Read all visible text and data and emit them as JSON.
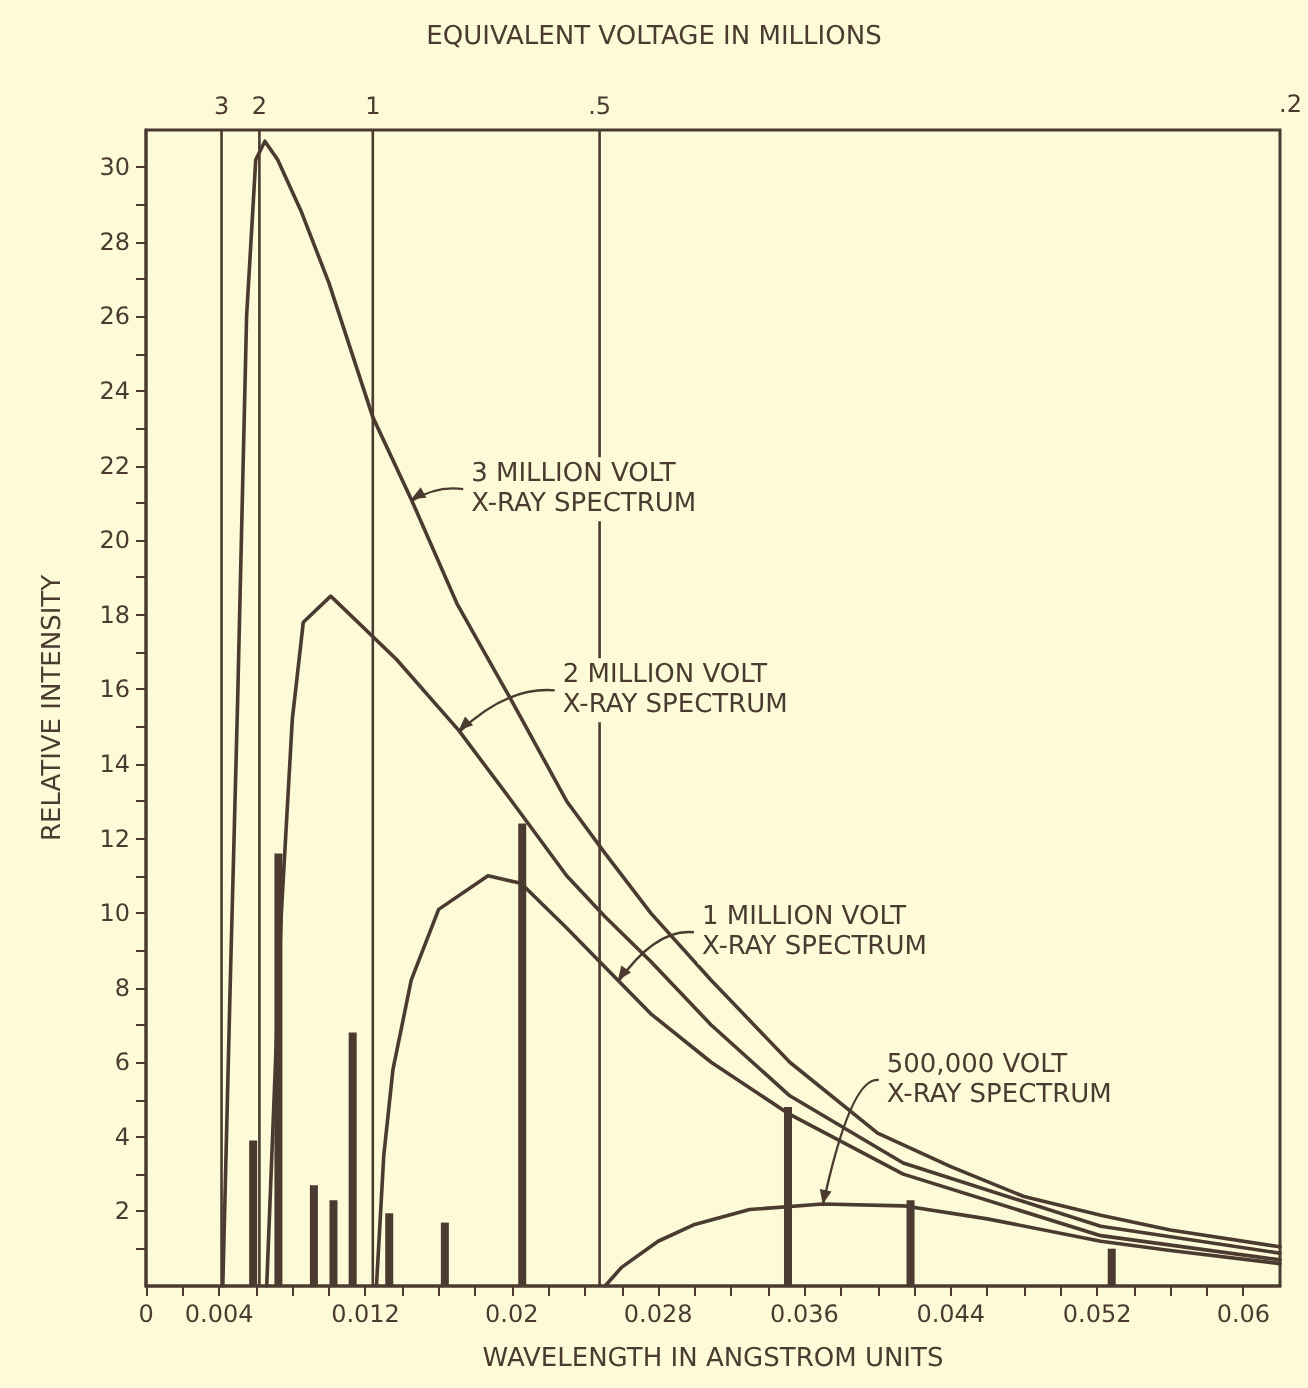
{
  "chart_data": {
    "type": "line",
    "xlabel": "WAVELENGTH IN ANGSTROM UNITS",
    "ylabel": "RELATIVE INTENSITY",
    "xlim": [
      0,
      0.062
    ],
    "xticks": [
      {
        "value": 0,
        "label": "0"
      },
      {
        "value": 0.002,
        "label": null
      },
      0.004,
      {
        "value": 0.006,
        "label": null
      },
      {
        "value": 0.008,
        "label": null
      },
      {
        "value": 0.01,
        "label": null
      },
      0.012,
      {
        "value": 0.014,
        "label": null
      },
      {
        "value": 0.016,
        "label": null
      },
      {
        "value": 0.018,
        "label": null
      },
      0.02,
      {
        "value": 0.022,
        "label": null
      },
      {
        "value": 0.024,
        "label": null
      },
      {
        "value": 0.026,
        "label": null
      },
      0.028,
      {
        "value": 0.03,
        "label": null
      },
      {
        "value": 0.032,
        "label": null
      },
      {
        "value": 0.034,
        "label": null
      },
      0.036,
      {
        "value": 0.038,
        "label": null
      },
      {
        "value": 0.04,
        "label": null
      },
      {
        "value": 0.042,
        "label": null
      },
      0.044,
      {
        "value": 0.046,
        "label": null
      },
      {
        "value": 0.048,
        "label": null
      },
      {
        "value": 0.05,
        "label": null
      },
      0.052,
      {
        "value": 0.054,
        "label": null
      },
      {
        "value": 0.056,
        "label": null
      },
      {
        "value": 0.058,
        "label": null
      },
      0.06
    ],
    "ylim": [
      0,
      31
    ],
    "yticks": [
      {
        "value": 1,
        "label": null
      },
      2,
      {
        "value": 3,
        "label": null
      },
      4,
      {
        "value": 5,
        "label": null
      },
      6,
      {
        "value": 7,
        "label": null
      },
      8,
      {
        "value": 9,
        "label": null
      },
      10,
      {
        "value": 11,
        "label": null
      },
      12,
      {
        "value": 13,
        "label": null
      },
      14,
      {
        "value": 15,
        "label": null
      },
      16,
      {
        "value": 17,
        "label": null
      },
      18,
      {
        "value": 19,
        "label": null
      },
      20,
      {
        "value": 21,
        "label": null
      },
      22,
      {
        "value": 23,
        "label": null
      },
      24,
      {
        "value": 25,
        "label": null
      },
      26,
      {
        "value": 27,
        "label": null
      },
      28,
      {
        "value": 29,
        "label": null
      },
      30
    ],
    "grid": false,
    "marker": "none",
    "line_style": "solid",
    "series": [
      {
        "color": "#4b3a30",
        "x": [
          0.0042,
          0.0046,
          0.005,
          0.0055,
          0.006,
          0.0065,
          0.0072,
          0.0085,
          0.01,
          0.0124,
          0.0145,
          0.017,
          0.0201,
          0.023,
          0.0251,
          0.0276,
          0.0309,
          0.0352,
          0.04,
          0.044,
          0.048,
          0.0522,
          0.056,
          0.062
        ],
        "values": [
          0,
          8,
          15.5,
          26,
          30.2,
          30.7,
          30.2,
          28.8,
          26.9,
          23.3,
          21.1,
          18.3,
          15.6,
          13,
          11.6,
          10,
          8.2,
          6,
          4.1,
          3.2,
          2.4,
          1.9,
          1.5,
          1.05
        ]
      },
      {
        "color": "#4b3a30",
        "x": [
          0.0066,
          0.007,
          0.0074,
          0.008,
          0.0086,
          0.0101,
          0.0137,
          0.0171,
          0.02,
          0.023,
          0.0251,
          0.0276,
          0.0309,
          0.0352,
          0.0414,
          0.0522,
          0.062
        ],
        "values": [
          0,
          5,
          10,
          15.2,
          17.8,
          18.5,
          16.8,
          14.9,
          13,
          11,
          9.9,
          8.7,
          7,
          5.1,
          3.3,
          1.6,
          0.88
        ]
      },
      {
        "color": "#4b3a30",
        "x": [
          0.0126,
          0.013,
          0.0135,
          0.0145,
          0.016,
          0.0187,
          0.0205,
          0.023,
          0.0258,
          0.0276,
          0.0309,
          0.0352,
          0.0414,
          0.0522,
          0.062
        ],
        "values": [
          0,
          3.5,
          5.8,
          8.2,
          10.1,
          11,
          10.8,
          9.6,
          8.2,
          7.3,
          6,
          4.6,
          3,
          1.35,
          0.7
        ]
      },
      {
        "color": "#4b3a30",
        "x": [
          0.0251,
          0.026,
          0.028,
          0.03,
          0.033,
          0.037,
          0.0414,
          0.046,
          0.0522,
          0.056,
          0.062
        ],
        "values": [
          0,
          0.5,
          1.2,
          1.65,
          2.05,
          2.2,
          2.15,
          1.8,
          1.2,
          0.95,
          0.6
        ]
      },
      {
        "type": "bar",
        "color": "#4b3a30",
        "x": [
          0.00586,
          0.00724,
          0.00918,
          0.01025,
          0.0113,
          0.0133,
          0.01634,
          0.02057,
          0.0351,
          0.0418,
          0.0528
        ],
        "values": [
          3.9,
          11.6,
          2.7,
          2.3,
          6.8,
          1.95,
          1.7,
          12.4,
          4.8,
          2.3,
          1
        ]
      }
    ],
    "ref_lines": [
      {
        "axis": "x",
        "value": 0.00413,
        "color": "#4b3a30"
      },
      {
        "axis": "x",
        "value": 0.0062,
        "color": "#4b3a30"
      },
      {
        "axis": "x",
        "value": 0.0124,
        "color": "#4b3a30"
      },
      {
        "axis": "x",
        "value": 0.0248,
        "color": "#4b3a30"
      }
    ],
    "annotations": [
      "EQUIVALENT VOLTAGE IN MILLIONS",
      {
        "text": "3",
        "x": 0.00413,
        "y": 31
      },
      {
        "text": "2",
        "x": 0.0062,
        "y": 31
      },
      {
        "text": "1",
        "x": 0.0124,
        "y": 31
      },
      {
        "text": ".5",
        "x": 0.0248,
        "y": 31
      },
      ".2",
      {
        "text": "3 MILLION VOLT X-RAY SPECTRUM",
        "x": 0.0145,
        "y": 21.1
      },
      {
        "text": "2 MILLION VOLT X-RAY SPECTRUM",
        "x": 0.0171,
        "y": 14.9
      },
      {
        "text": "1 MILLION VOLT X-RAY SPECTRUM",
        "x": 0.0258,
        "y": 8.2
      },
      {
        "text": "500,000 VOLT X-RAY SPECTRUM",
        "x": 0.037,
        "y": 2.2
      }
    ]
  }
}
